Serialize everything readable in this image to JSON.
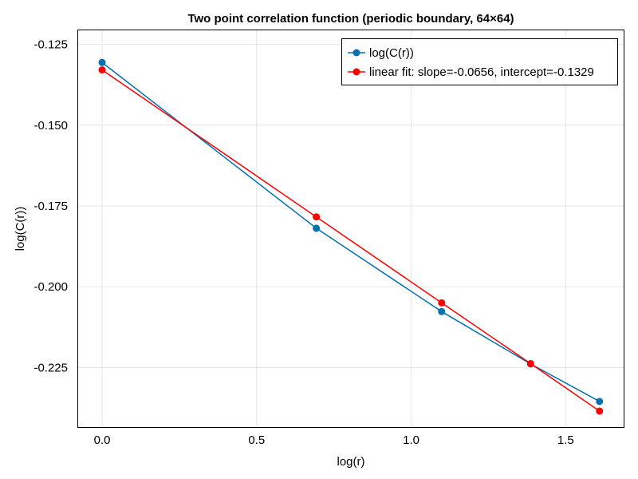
{
  "chart_data": {
    "type": "line",
    "title": "Two point correlation function (periodic boundary, 64×64)",
    "xlabel": "log(r)",
    "ylabel": "log(C(r))",
    "xlim": [
      -0.08,
      1.69
    ],
    "ylim": [
      -0.2437,
      -0.1204
    ],
    "xticks": [
      0.0,
      0.5,
      1.0,
      1.5
    ],
    "xtick_labels": [
      "0.0",
      "0.5",
      "1.0",
      "1.5"
    ],
    "yticks": [
      -0.225,
      -0.2,
      -0.175,
      -0.15,
      -0.125
    ],
    "ytick_labels": [
      "-0.225",
      "-0.200",
      "-0.175",
      "-0.150",
      "-0.125"
    ],
    "grid": true,
    "legend_position": "top-right",
    "series": [
      {
        "name": "log(C(r))",
        "color": "#0072b2",
        "marker": "circle",
        "x": [
          0.0,
          0.6931,
          1.0986,
          1.3863,
          1.6094
        ],
        "y": [
          -0.1306,
          -0.1819,
          -0.2077,
          -0.2239,
          -0.2355
        ]
      },
      {
        "name": "linear fit: slope=-0.0656, intercept=-0.1329",
        "color": "#ff0000",
        "marker": "circle",
        "x": [
          0.0,
          0.6931,
          1.0986,
          1.3863,
          1.6094
        ],
        "y": [
          -0.1329,
          -0.1784,
          -0.205,
          -0.2238,
          -0.2385
        ]
      }
    ]
  }
}
